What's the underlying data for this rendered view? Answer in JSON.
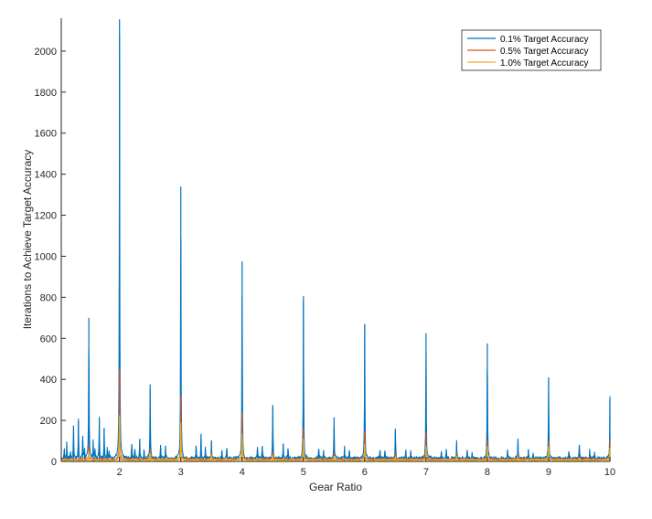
{
  "chart_data": {
    "type": "line",
    "title": "",
    "xlabel": "Gear Ratio",
    "ylabel": "Iterations to Achieve Target Accuracy",
    "xlim": [
      1.05,
      10
    ],
    "ylim": [
      0,
      2160
    ],
    "xticks": [
      2,
      3,
      4,
      5,
      6,
      7,
      8,
      9,
      10
    ],
    "yticks": [
      0,
      200,
      400,
      600,
      800,
      1000,
      1200,
      1400,
      1600,
      1800,
      2000
    ],
    "grid": false,
    "legend_position": "top-right",
    "baseline_noise": [
      18,
      12,
      8
    ],
    "series": [
      {
        "name": "0.1% Target Accuracy",
        "color": "#0072BD",
        "peaks": [
          [
            1.1,
            55
          ],
          [
            1.14,
            85
          ],
          [
            1.2,
            40
          ],
          [
            1.25,
            175
          ],
          [
            1.33,
            195
          ],
          [
            1.4,
            125
          ],
          [
            1.43,
            55
          ],
          [
            1.5,
            700
          ],
          [
            1.57,
            95
          ],
          [
            1.6,
            55
          ],
          [
            1.67,
            210
          ],
          [
            1.75,
            160
          ],
          [
            1.8,
            60
          ],
          [
            1.83,
            45
          ],
          [
            2.0,
            2155
          ],
          [
            2.2,
            85
          ],
          [
            2.25,
            60
          ],
          [
            2.33,
            110
          ],
          [
            2.4,
            50
          ],
          [
            2.5,
            375
          ],
          [
            2.67,
            80
          ],
          [
            2.75,
            75
          ],
          [
            3.0,
            1340
          ],
          [
            3.25,
            75
          ],
          [
            3.33,
            135
          ],
          [
            3.4,
            55
          ],
          [
            3.5,
            100
          ],
          [
            3.67,
            55
          ],
          [
            3.75,
            60
          ],
          [
            4.0,
            975
          ],
          [
            4.25,
            60
          ],
          [
            4.33,
            75
          ],
          [
            4.5,
            275
          ],
          [
            4.67,
            85
          ],
          [
            4.75,
            60
          ],
          [
            5.0,
            805
          ],
          [
            5.25,
            60
          ],
          [
            5.33,
            50
          ],
          [
            5.5,
            215
          ],
          [
            5.67,
            60
          ],
          [
            5.75,
            55
          ],
          [
            6.0,
            665
          ],
          [
            6.25,
            55
          ],
          [
            6.33,
            50
          ],
          [
            6.5,
            160
          ],
          [
            6.67,
            50
          ],
          [
            6.75,
            45
          ],
          [
            7.0,
            625
          ],
          [
            7.25,
            50
          ],
          [
            7.33,
            60
          ],
          [
            7.5,
            90
          ],
          [
            7.67,
            55
          ],
          [
            7.75,
            40
          ],
          [
            8.0,
            575
          ],
          [
            8.33,
            55
          ],
          [
            8.5,
            105
          ],
          [
            8.67,
            55
          ],
          [
            8.75,
            35
          ],
          [
            9.0,
            410
          ],
          [
            9.33,
            45
          ],
          [
            9.5,
            80
          ],
          [
            9.67,
            50
          ],
          [
            9.75,
            35
          ],
          [
            10.0,
            305
          ]
        ]
      },
      {
        "name": "0.5% Target Accuracy",
        "color": "#D95319",
        "peaks": [
          [
            1.5,
            80
          ],
          [
            2.0,
            450
          ],
          [
            2.5,
            60
          ],
          [
            3.0,
            320
          ],
          [
            3.5,
            35
          ],
          [
            4.0,
            240
          ],
          [
            4.5,
            45
          ],
          [
            5.0,
            160
          ],
          [
            5.5,
            40
          ],
          [
            6.0,
            145
          ],
          [
            6.5,
            35
          ],
          [
            7.0,
            140
          ],
          [
            7.5,
            30
          ],
          [
            8.0,
            105
          ],
          [
            8.5,
            30
          ],
          [
            9.0,
            100
          ],
          [
            9.5,
            25
          ],
          [
            10.0,
            90
          ]
        ]
      },
      {
        "name": "1.0% Target Accuracy",
        "color": "#EDB120",
        "peaks": [
          [
            1.5,
            50
          ],
          [
            2.0,
            225
          ],
          [
            2.5,
            40
          ],
          [
            3.0,
            190
          ],
          [
            3.5,
            30
          ],
          [
            4.0,
            135
          ],
          [
            4.5,
            30
          ],
          [
            5.0,
            110
          ],
          [
            5.5,
            25
          ],
          [
            6.0,
            85
          ],
          [
            6.5,
            22
          ],
          [
            7.0,
            75
          ],
          [
            7.5,
            20
          ],
          [
            8.0,
            75
          ],
          [
            8.5,
            20
          ],
          [
            9.0,
            70
          ],
          [
            9.5,
            18
          ],
          [
            10.0,
            65
          ]
        ]
      }
    ]
  }
}
